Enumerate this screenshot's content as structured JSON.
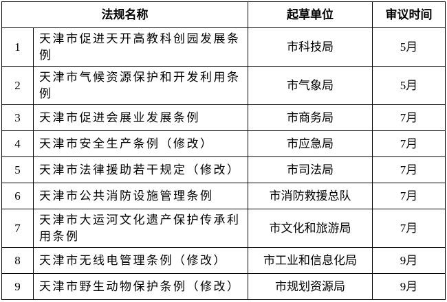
{
  "headers": {
    "name": "法规名称",
    "unit": "起草单位",
    "time": "审议时间"
  },
  "rows": [
    {
      "num": "1",
      "name": "天津市促进天开高教科创园发展条例",
      "unit": "市科技局",
      "time": "5月"
    },
    {
      "num": "2",
      "name": "天津市气候资源保护和开发利用条例",
      "unit": "市气象局",
      "time": "5月"
    },
    {
      "num": "3",
      "name": "天津市促进会展业发展条例",
      "unit": "市商务局",
      "time": "7月"
    },
    {
      "num": "4",
      "name": "天津市安全生产条例（修改）",
      "unit": "市应急局",
      "time": "7月"
    },
    {
      "num": "5",
      "name": "天津市法律援助若干规定（修改）",
      "unit": "市司法局",
      "time": "7月"
    },
    {
      "num": "6",
      "name": "天津市公共消防设施管理条例",
      "unit": "市消防救援总队",
      "time": "7月"
    },
    {
      "num": "7",
      "name": "天津市大运河文化遗产保护传承利用条例",
      "unit": "市文化和旅游局",
      "time": "7月"
    },
    {
      "num": "8",
      "name": "天津市无线电管理条例（修改）",
      "unit": "市工业和信息化局",
      "time": "9月"
    },
    {
      "num": "9",
      "name": "天津市野生动物保护条例（修改）",
      "unit": "市规划资源局",
      "time": "9月"
    }
  ]
}
